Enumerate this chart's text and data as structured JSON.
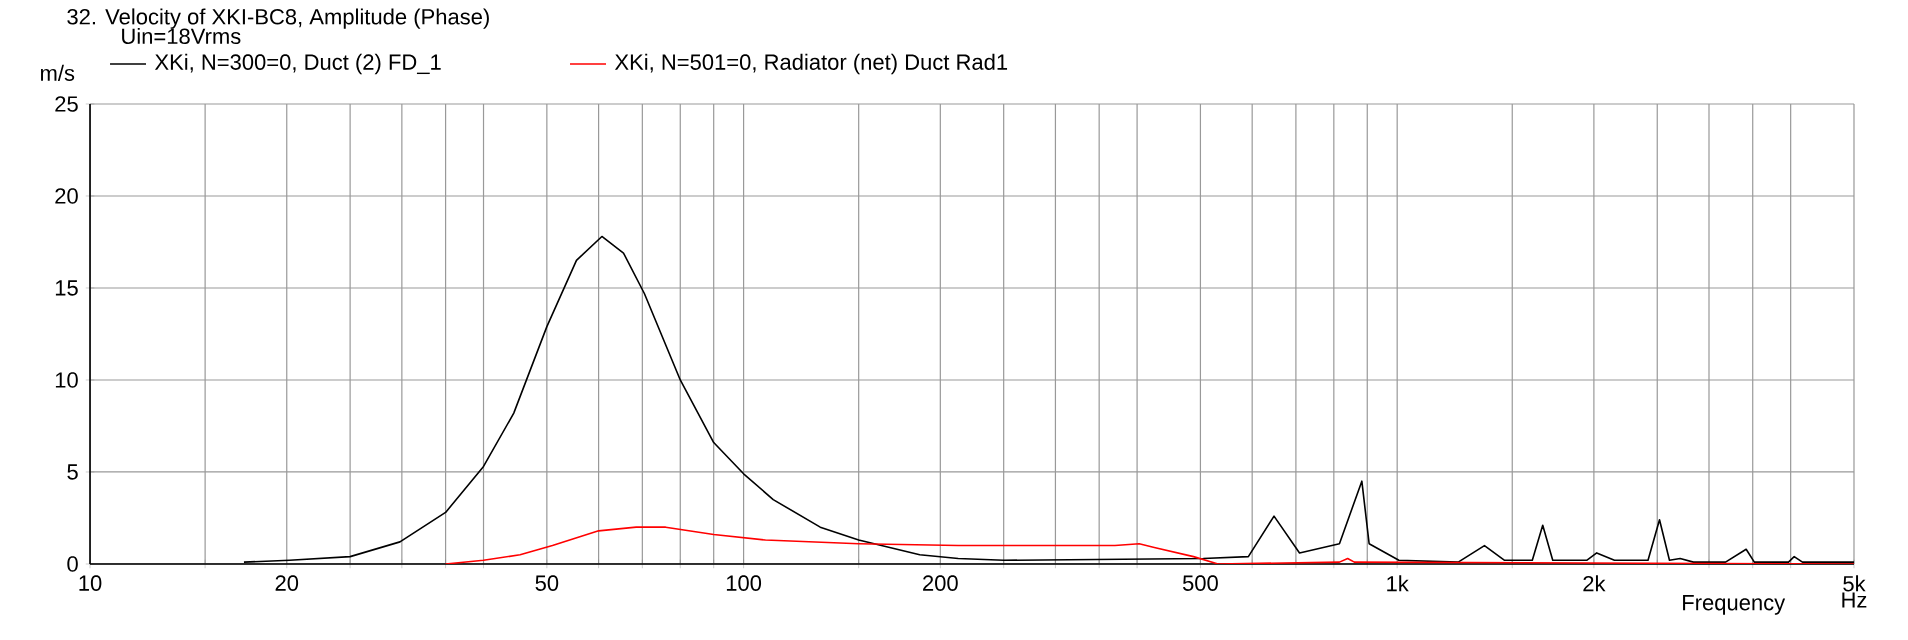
{
  "chart_data": {
    "type": "line",
    "title": "32. Velocity of XKI-BC8, Amplitude (Phase)",
    "xlabel": "Frequency",
    "ylabel": "m/s",
    "annotations": [
      "Uin=18Vrms",
      "Hz"
    ],
    "log": "x",
    "grid": true,
    "legend": "top left",
    "marker": "none",
    "line_style": "solid",
    "xlim": [
      10,
      5000
    ],
    "ylim": [
      0,
      25
    ],
    "xticks": [
      10,
      20,
      50,
      100,
      200,
      500,
      {
        "value": 1000,
        "label": "1k"
      },
      {
        "value": 2000,
        "label": "2k"
      },
      {
        "value": 5000,
        "label": "5k"
      },
      {
        "value": 15,
        "label": null
      },
      {
        "value": 25,
        "label": null
      },
      {
        "value": 30,
        "label": null
      },
      {
        "value": 35,
        "label": null
      },
      {
        "value": 40,
        "label": null
      },
      {
        "value": 60,
        "label": null
      },
      {
        "value": 70,
        "label": null
      },
      {
        "value": 80,
        "label": null
      },
      {
        "value": 90,
        "label": null
      },
      {
        "value": 150,
        "label": null
      },
      {
        "value": 250,
        "label": null
      },
      {
        "value": 300,
        "label": null
      },
      {
        "value": 350,
        "label": null
      },
      {
        "value": 400,
        "label": null
      },
      {
        "value": 600,
        "label": null
      },
      {
        "value": 700,
        "label": null
      },
      {
        "value": 800,
        "label": null
      },
      {
        "value": 900,
        "label": null
      },
      {
        "value": 1500,
        "label": null
      },
      {
        "value": 2500,
        "label": null
      },
      {
        "value": 3000,
        "label": null
      },
      {
        "value": 3500,
        "label": null
      },
      {
        "value": 4000,
        "label": null
      }
    ],
    "yticks": [
      0,
      5,
      10,
      15,
      20,
      25
    ],
    "series": [
      {
        "name": "XKi, N=300=0, Duct (2) FD_1",
        "color": "#000000",
        "x": [
          17.2,
          20.2,
          25,
          29.8,
          35,
          40,
          44.5,
          50,
          55.5,
          60.7,
          65.5,
          70.5,
          80,
          90,
          100,
          111,
          131,
          150,
          186,
          213,
          250,
          505,
          592,
          648,
          709,
          816,
          883,
          906,
          1006,
          1240,
          1360,
          1460,
          1610,
          1670,
          1730,
          1950,
          2020,
          2150,
          2420,
          2520,
          2610,
          2710,
          2840,
          3180,
          3420,
          3520,
          3970,
          4050,
          4170,
          5000
        ],
        "values": [
          0.1,
          0.2,
          0.4,
          1.2,
          2.8,
          5.3,
          8.2,
          12.9,
          16.5,
          17.8,
          16.9,
          14.7,
          10,
          6.6,
          4.9,
          3.5,
          2,
          1.3,
          0.5,
          0.3,
          0.2,
          0.3,
          0.4,
          2.6,
          0.6,
          1.1,
          4.5,
          1.1,
          0.2,
          0.1,
          1,
          0.2,
          0.2,
          2.1,
          0.2,
          0.2,
          0.6,
          0.2,
          0.2,
          2.4,
          0.2,
          0.3,
          0.1,
          0.1,
          0.8,
          0.1,
          0.1,
          0.4,
          0.1,
          0.1
        ]
      },
      {
        "name": "XKi, N=501=0, Radiator (net) Duct Rad1",
        "color": "#ff0000",
        "x": [
          35,
          40,
          45.5,
          51,
          60,
          68.5,
          76,
          90,
          108,
          150,
          213,
          370,
          403,
          425,
          488,
          532,
          816,
          840,
          860,
          5000
        ],
        "values": [
          0,
          0.2,
          0.5,
          1,
          1.8,
          2,
          2,
          1.6,
          1.3,
          1.1,
          1,
          1,
          1.1,
          0.9,
          0.4,
          0,
          0.1,
          0.3,
          0.1,
          0
        ]
      }
    ]
  }
}
